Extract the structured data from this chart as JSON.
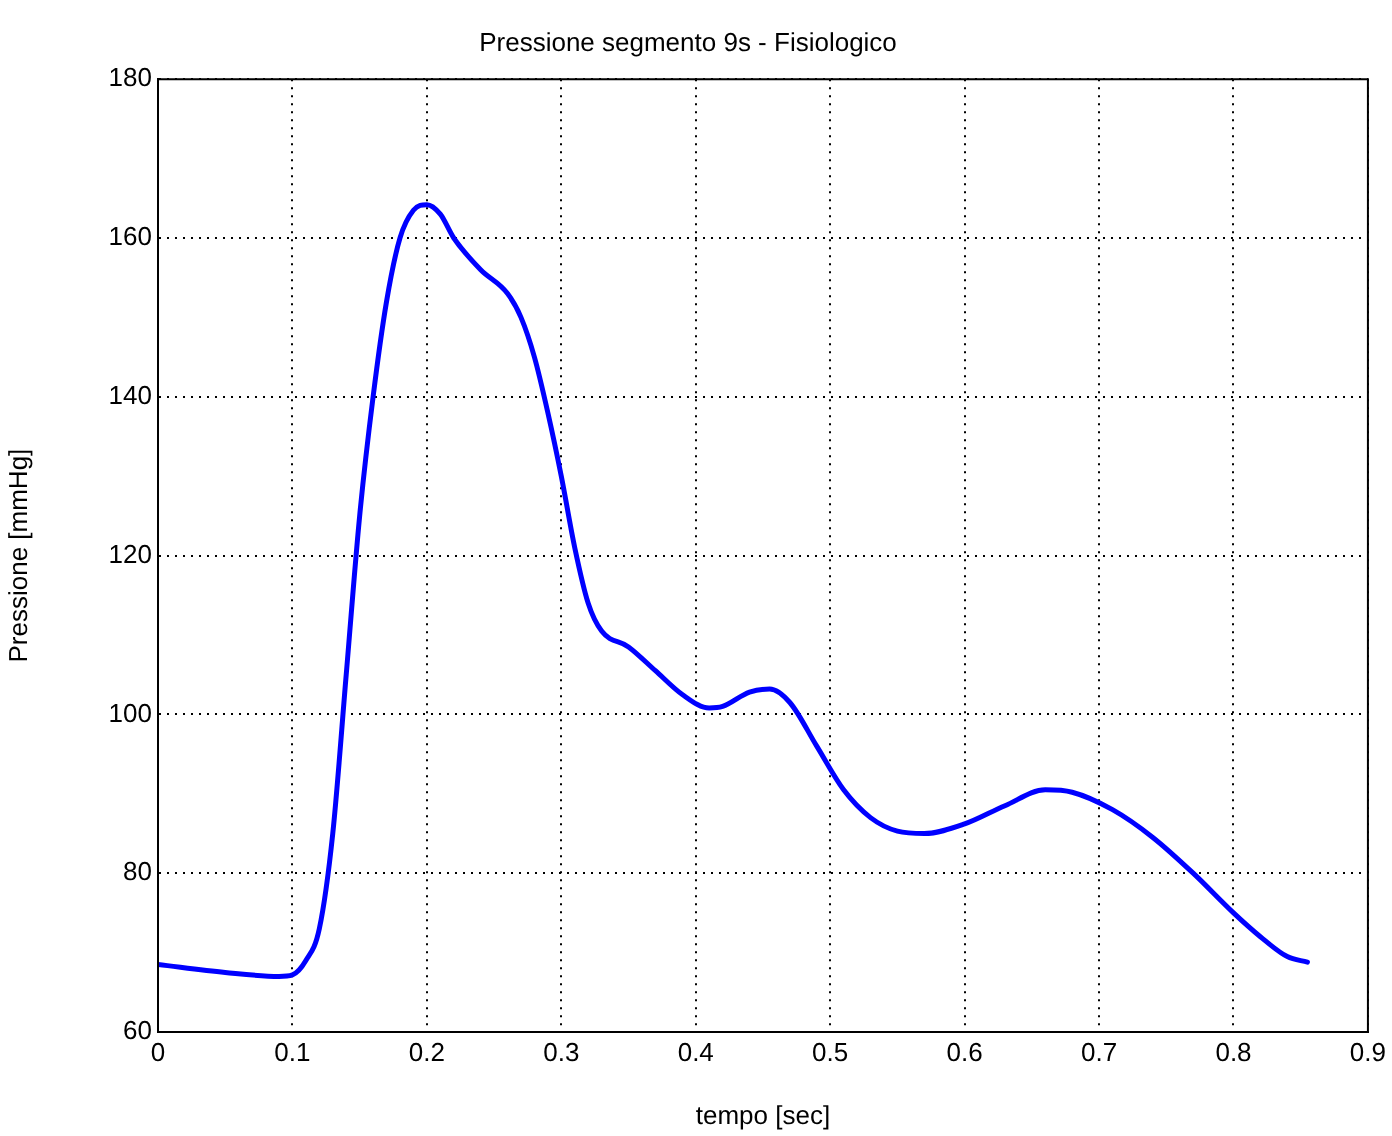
{
  "chart_data": {
    "type": "line",
    "title": "Pressione segmento 9s - Fisiologico",
    "xlabel": "tempo [sec]",
    "ylabel": "Pressione [mmHg]",
    "x": [
      0,
      0.05,
      0.09,
      0.1,
      0.11,
      0.12,
      0.13,
      0.14,
      0.15,
      0.16,
      0.17,
      0.18,
      0.19,
      0.2,
      0.21,
      0.22,
      0.24,
      0.26,
      0.27,
      0.28,
      0.29,
      0.3,
      0.31,
      0.32,
      0.33,
      0.35,
      0.37,
      0.39,
      0.41,
      0.42,
      0.44,
      0.455,
      0.47,
      0.49,
      0.51,
      0.53,
      0.55,
      0.57,
      0.6,
      0.63,
      0.66,
      0.68,
      0.71,
      0.74,
      0.77,
      0.8,
      0.82,
      0.84,
      0.855
    ],
    "series": [
      {
        "color": "#0000ff",
        "values": [
          68.5,
          67.5,
          67,
          67.2,
          69,
          73,
          85,
          105,
          125,
          140,
          152,
          160,
          163.5,
          164.2,
          163,
          160,
          156,
          153,
          150,
          145,
          138,
          130,
          121,
          114,
          110.5,
          108.5,
          105.5,
          102.5,
          100.8,
          101,
          102.8,
          103.2,
          101.5,
          96,
          90.5,
          87,
          85.3,
          85,
          86.2,
          88.5,
          90.5,
          90.2,
          88,
          84.5,
          80,
          75,
          72,
          69.5,
          68.8
        ]
      }
    ],
    "xlim": [
      0,
      0.9
    ],
    "xticks": [
      0,
      0.1,
      0.2,
      0.3,
      0.4,
      0.5,
      0.6,
      0.7,
      0.8,
      0.9
    ],
    "ylim": [
      60,
      180
    ],
    "yticks": [
      60,
      80,
      100,
      120,
      140,
      160,
      180
    ],
    "grid": true,
    "legend": false,
    "marker": "none",
    "line_style": "solid"
  }
}
